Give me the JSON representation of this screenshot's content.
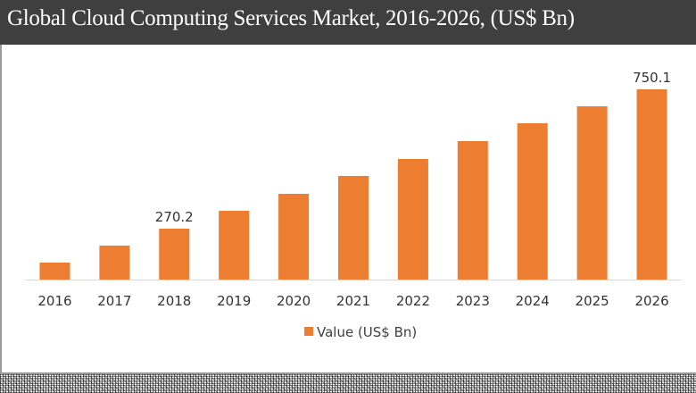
{
  "header": {
    "title": "Global Cloud Computing Services Market, 2016-2026, (US$ Bn)"
  },
  "chart_data": {
    "type": "bar",
    "title": "Global Cloud Computing Services Market, 2016-2026, (US$ Bn)",
    "categories": [
      "2016",
      "2017",
      "2018",
      "2019",
      "2020",
      "2021",
      "2022",
      "2023",
      "2024",
      "2025",
      "2026"
    ],
    "series": [
      {
        "name": "Value (US$ Bn)",
        "color": "#ED7D31",
        "values": [
          153.3,
          211.8,
          270.2,
          331.8,
          390.2,
          451.7,
          510.2,
          571.7,
          633.2,
          691.6,
          750.1
        ]
      }
    ],
    "data_labels": [
      {
        "category": "2018",
        "text": "270.2"
      },
      {
        "category": "2026",
        "text": "750.1"
      }
    ],
    "xlabel": "",
    "ylabel": "",
    "ylim": [
      95,
      750.1
    ],
    "yaxis_visible": false,
    "grid": false,
    "legend": {
      "position": "bottom",
      "entries": [
        "Value (US$ Bn)"
      ]
    }
  }
}
